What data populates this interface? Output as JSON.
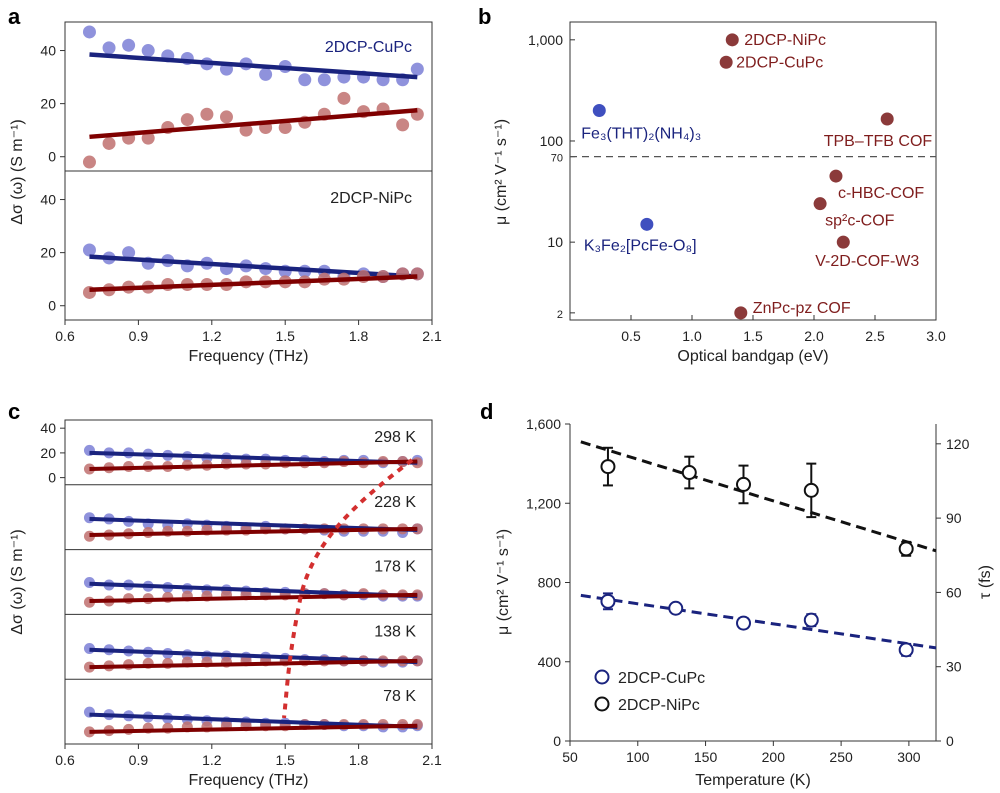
{
  "colors": {
    "blue": "#1a237e",
    "blue_pt": "#7b7fd6",
    "red": "#7f0000",
    "red_pt": "#c0706e",
    "black": "#111111",
    "dash": "#555555",
    "dot": "#d32f2f"
  },
  "chart_data": [
    {
      "panel": "a",
      "type": "scatter",
      "xlabel": "Frequency (THz)",
      "ylabel": "Δσ (ω) (S m⁻¹)",
      "xlim": [
        0.6,
        2.1
      ],
      "xticks": [
        "0.6",
        "0.9",
        "1.2",
        "1.5",
        "1.8",
        "2.1"
      ],
      "ylim": [
        -5,
        50
      ],
      "yticks": [
        "0",
        "20",
        "40"
      ],
      "subplots": [
        {
          "label": "2DCP-CuPc",
          "series": [
            {
              "name": "blue",
              "x": [
                0.7,
                0.78,
                0.86,
                0.94,
                1.02,
                1.1,
                1.18,
                1.26,
                1.34,
                1.42,
                1.5,
                1.58,
                1.66,
                1.74,
                1.82,
                1.9,
                1.98,
                2.04
              ],
              "y": [
                47,
                41,
                42,
                40,
                38,
                37,
                35,
                33,
                35,
                31,
                34,
                29,
                29,
                30,
                30,
                29,
                29,
                33
              ],
              "fit": [
                38.5,
                30
              ]
            },
            {
              "name": "red",
              "x": [
                0.7,
                0.78,
                0.86,
                0.94,
                1.02,
                1.1,
                1.18,
                1.26,
                1.34,
                1.42,
                1.5,
                1.58,
                1.66,
                1.74,
                1.82,
                1.9,
                1.98,
                2.04
              ],
              "y": [
                -2,
                5,
                7,
                7,
                11,
                14,
                16,
                15,
                10,
                11,
                11,
                13,
                16,
                22,
                17,
                18,
                12,
                16
              ],
              "fit": [
                7.5,
                17.5
              ]
            }
          ]
        },
        {
          "label": "2DCP-NiPc",
          "series": [
            {
              "name": "blue",
              "x": [
                0.7,
                0.78,
                0.86,
                0.94,
                1.02,
                1.1,
                1.18,
                1.26,
                1.34,
                1.42,
                1.5,
                1.58,
                1.66,
                1.74,
                1.82,
                1.9,
                1.98,
                2.04
              ],
              "y": [
                21,
                18,
                20,
                16,
                17,
                15,
                16,
                14,
                15,
                14,
                13,
                13,
                13,
                11,
                12,
                11,
                12,
                12
              ],
              "fit": [
                18.5,
                11
              ]
            },
            {
              "name": "red",
              "x": [
                0.7,
                0.78,
                0.86,
                0.94,
                1.02,
                1.1,
                1.18,
                1.26,
                1.34,
                1.42,
                1.5,
                1.58,
                1.66,
                1.74,
                1.82,
                1.9,
                1.98,
                2.04
              ],
              "y": [
                5,
                6,
                7,
                7,
                8,
                8,
                8,
                8,
                9,
                9,
                9,
                9,
                10,
                10,
                11,
                11,
                12,
                12
              ],
              "fit": [
                6,
                11
              ]
            }
          ]
        }
      ]
    },
    {
      "panel": "b",
      "type": "scatter",
      "xlabel": "Optical bandgap (eV)",
      "ylabel": "μ (cm² V⁻¹ s⁻¹)",
      "yscale": "log",
      "xlim": [
        0,
        3.0
      ],
      "xticks": [
        "0.5",
        "1.0",
        "1.5",
        "2.0",
        "2.5",
        "3.0"
      ],
      "ylim": [
        1.7,
        1500
      ],
      "yticks": [
        {
          "v": 2,
          "label": "2"
        },
        {
          "v": 10,
          "label": "10"
        },
        {
          "v": 70,
          "label": "70"
        },
        {
          "v": 100,
          "label": "100"
        },
        {
          "v": 1000,
          "label": "1,000"
        }
      ],
      "hline": 70,
      "points": [
        {
          "label": "2DCP-NiPc",
          "x": 1.33,
          "y": 1000,
          "color": "red"
        },
        {
          "label": "2DCP-CuPc",
          "x": 1.28,
          "y": 600,
          "color": "red"
        },
        {
          "label": "Fe₃(THT)₂(NH₄)₃",
          "x": 0.24,
          "y": 200,
          "color": "blue"
        },
        {
          "label": "TPB–TFB  COF",
          "x": 2.6,
          "y": 165,
          "color": "red"
        },
        {
          "label": "c-HBC-COF",
          "x": 2.18,
          "y": 45,
          "color": "red"
        },
        {
          "label": "sp²c-COF",
          "x": 2.05,
          "y": 24,
          "color": "red"
        },
        {
          "label": "K₃Fe₂[PcFe-O₈]",
          "x": 0.63,
          "y": 15,
          "color": "blue"
        },
        {
          "label": "V-2D-COF-W3",
          "x": 2.24,
          "y": 10,
          "color": "red"
        },
        {
          "label": "ZnPc-pz COF",
          "x": 1.4,
          "y": 2,
          "color": "red"
        }
      ]
    },
    {
      "panel": "c",
      "type": "scatter",
      "xlabel": "Frequency (THz)",
      "ylabel": "Δσ (ω) (S m⁻¹)",
      "xlim": [
        0.6,
        2.1
      ],
      "xticks": [
        "0.6",
        "0.9",
        "1.2",
        "1.5",
        "1.8",
        "2.1"
      ],
      "ylim": [
        -5,
        45
      ],
      "yticks": [
        "0",
        "20",
        "40"
      ],
      "subplots": [
        {
          "label": "298 K",
          "blue": [
            22,
            20,
            20,
            19,
            18,
            17,
            16,
            16,
            15,
            15,
            14,
            14,
            13,
            14,
            14,
            12,
            13,
            14
          ],
          "red": [
            7,
            8,
            9,
            9,
            9,
            10,
            10,
            11,
            11,
            11,
            12,
            12,
            12,
            13,
            12,
            13,
            13,
            12
          ],
          "bfit": [
            20,
            12
          ],
          "rfit": [
            7,
            13
          ]
        },
        {
          "label": "228 K",
          "blue": [
            20,
            19,
            17,
            15,
            14,
            15,
            14,
            13,
            12,
            13,
            11,
            11,
            10,
            9,
            9,
            9,
            8,
            11
          ],
          "red": [
            5,
            6,
            7,
            8,
            9,
            9,
            10,
            10,
            10,
            11,
            11,
            11,
            11,
            11,
            11,
            11,
            11,
            11
          ],
          "bfit": [
            19,
            10
          ],
          "rfit": [
            6,
            11
          ]
        },
        {
          "label": "178 K",
          "blue": [
            20,
            18,
            18,
            17,
            16,
            15,
            14,
            14,
            13,
            12,
            12,
            11,
            11,
            10,
            10,
            9,
            9,
            9
          ],
          "red": [
            4,
            5,
            7,
            7,
            8,
            9,
            9,
            10,
            10,
            10,
            10,
            11,
            11,
            10,
            11,
            10,
            10,
            10
          ],
          "bfit": [
            19,
            9
          ],
          "rfit": [
            5,
            10
          ]
        },
        {
          "label": "138 K",
          "blue": [
            19,
            18,
            17,
            16,
            15,
            14,
            13,
            13,
            12,
            12,
            11,
            10,
            10,
            9,
            9,
            8,
            8,
            9
          ],
          "red": [
            4,
            5,
            6,
            7,
            7,
            8,
            8,
            8,
            9,
            9,
            9,
            9,
            9,
            9,
            9,
            9,
            9,
            9
          ],
          "bfit": [
            18,
            8
          ],
          "rfit": [
            4,
            9
          ]
        },
        {
          "label": "78 K",
          "blue": [
            20,
            18,
            17,
            16,
            15,
            14,
            13,
            12,
            12,
            11,
            11,
            10,
            10,
            9,
            9,
            8,
            8,
            9
          ],
          "red": [
            4,
            5,
            6,
            7,
            7,
            8,
            8,
            9,
            9,
            9,
            9,
            10,
            10,
            10,
            10,
            10,
            10,
            10
          ],
          "bfit": [
            18,
            8
          ],
          "rfit": [
            4,
            9
          ]
        }
      ],
      "x": [
        0.7,
        0.78,
        0.86,
        0.94,
        1.02,
        1.1,
        1.18,
        1.26,
        1.34,
        1.42,
        1.5,
        1.58,
        1.66,
        1.74,
        1.82,
        1.9,
        1.98,
        2.04
      ]
    },
    {
      "panel": "d",
      "type": "scatter",
      "xlabel": "Temperature (K)",
      "ylabel": "μ (cm² V⁻¹ s⁻¹)",
      "y2label": "τ (fs)",
      "xlim": [
        50,
        320
      ],
      "xticks": [
        "50",
        "100",
        "150",
        "200",
        "250",
        "300"
      ],
      "ylim": [
        0,
        1600
      ],
      "yticks": [
        "0",
        "400",
        "800",
        "1,200",
        "1,600"
      ],
      "y2lim": [
        0,
        128
      ],
      "y2ticks": [
        "0",
        "30",
        "60",
        "90",
        "120"
      ],
      "series": [
        {
          "name": "2DCP-CuPc",
          "x": [
            78,
            128,
            178,
            228,
            298
          ],
          "y": [
            705,
            670,
            595,
            610,
            460
          ],
          "err": [
            40,
            20,
            25,
            30,
            30
          ],
          "fit": [
            735,
            470
          ]
        },
        {
          "name": "2DCP-NiPc",
          "x": [
            78,
            138,
            178,
            228,
            298
          ],
          "y": [
            1385,
            1355,
            1295,
            1265,
            970
          ],
          "err": [
            95,
            80,
            95,
            135,
            35
          ],
          "fit": [
            1510,
            960
          ]
        }
      ]
    }
  ],
  "labels": {
    "a": "a",
    "b": "b",
    "c": "c",
    "d": "d"
  }
}
